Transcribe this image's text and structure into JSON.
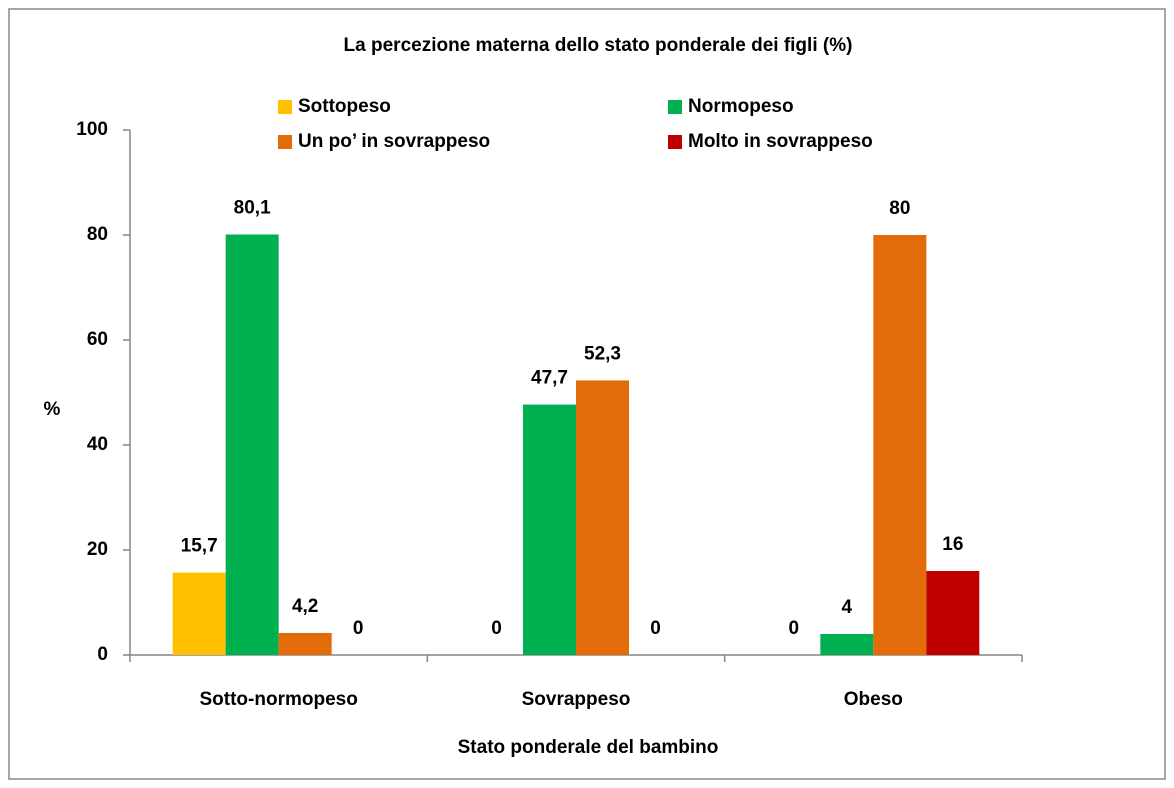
{
  "chart_data": {
    "type": "bar",
    "title": "La percezione materna dello stato ponderale dei figli (%)",
    "x_label": "Stato ponderale  del bambino",
    "y_label": "%",
    "categories": [
      "Sotto-normopeso",
      "Sovrappeso",
      "Obeso"
    ],
    "series": [
      {
        "name": "Sottopeso",
        "color": "#ffc000",
        "values": [
          15.7,
          0,
          0
        ],
        "value_labels": [
          "15,7",
          "0",
          "0"
        ]
      },
      {
        "name": "Normopeso",
        "color": "#00b050",
        "values": [
          80.1,
          47.7,
          4
        ],
        "value_labels": [
          "80,1",
          "47,7",
          "4"
        ]
      },
      {
        "name": "Un po’ in sovrappeso",
        "color": "#e36c0a",
        "values": [
          4.2,
          52.3,
          80
        ],
        "value_labels": [
          "4,2",
          "52,3",
          "80"
        ]
      },
      {
        "name": "Molto in sovrappeso",
        "color": "#c00000",
        "values": [
          0,
          0,
          16
        ],
        "value_labels": [
          "0",
          "0",
          "16"
        ]
      }
    ],
    "ylim": [
      0,
      100
    ],
    "yticks": [
      0,
      20,
      40,
      60,
      80,
      100
    ],
    "grid": false
  }
}
